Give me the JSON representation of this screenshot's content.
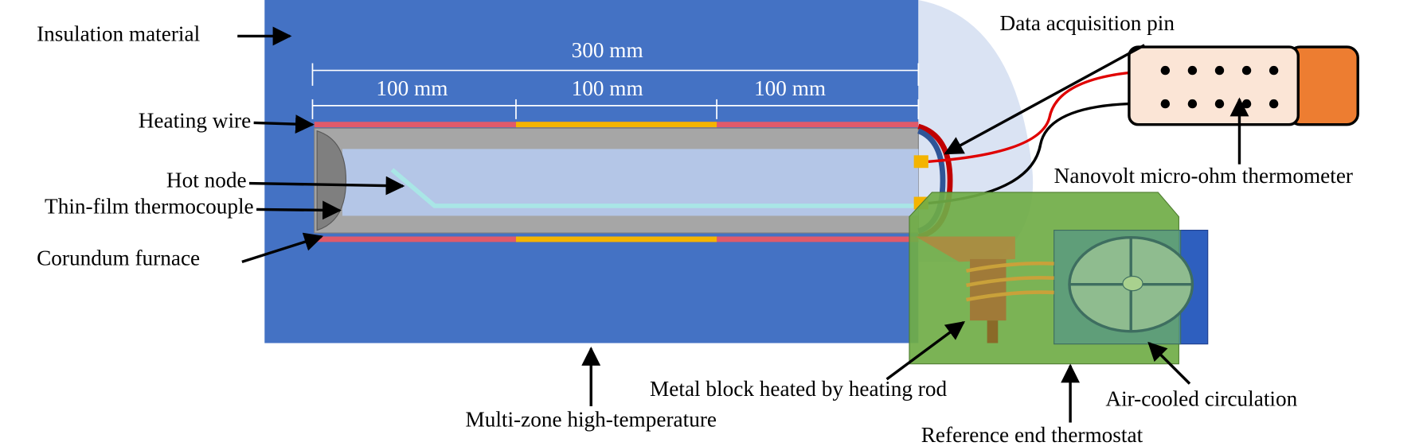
{
  "labels": {
    "insulation": "Insulation material",
    "heating_wire": "Heating wire",
    "hot_node": "Hot node",
    "thermocouple": "Thin-film thermocouple",
    "furnace": "Corundum  furnace",
    "multi_zone": "Multi-zone  high-temperature",
    "pin": "Data acquisition pin",
    "thermometer": "Nanovolt micro-ohm thermometer",
    "metal_block": "Metal block heated by heating rod",
    "air_cooled": "Air-cooled  circulation",
    "thermostat": "Reference end thermostat"
  },
  "dimensions": {
    "total": "300 mm",
    "zones": [
      "100 mm",
      "100 mm",
      "100 mm"
    ]
  }
}
